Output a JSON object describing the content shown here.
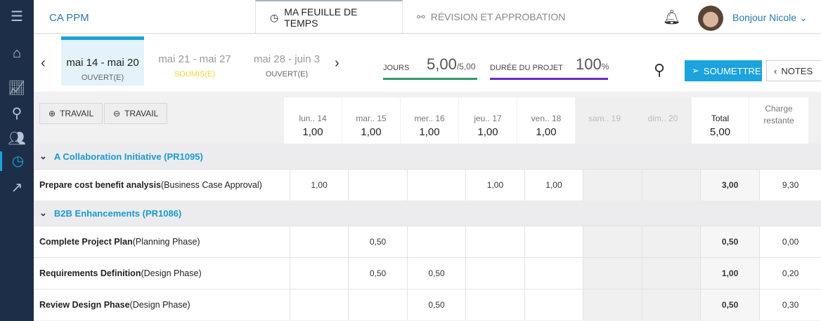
{
  "app": {
    "title": "CA PPM",
    "greeting": "Bonjour Nicole"
  },
  "tabs": [
    {
      "label": "MA FEUILLE DE TEMPS",
      "active": true
    },
    {
      "label": "RÉVISION ET APPROBATION",
      "active": false
    }
  ],
  "weeks": [
    {
      "range": "mai 14 - mai 20",
      "status": "OUVERT(E)",
      "selected": true,
      "color": "#666666"
    },
    {
      "range": "mai 21 - mai 27",
      "status": "SOUMIS(E)",
      "color": "#f2d43a"
    },
    {
      "range": "mai 28 - juin 3",
      "status": "OUVERT(E)",
      "color": "#666666"
    }
  ],
  "metrics": {
    "days_label": "JOURS",
    "days_value": "5,00",
    "days_total": "/5,00",
    "days_progress": 1.0,
    "duration_label": "DURÉE DU PROJET",
    "duration_value": "100",
    "duration_unit": "%",
    "duration_progress": 1.0
  },
  "actions": {
    "submit": "SOUMETTRE",
    "notes": "NOTES",
    "add_work": "TRAVAIL",
    "remove_work": "TRAVAIL"
  },
  "colors": {
    "accent": "#1aa3dc",
    "sidebar": "#1d2f48",
    "days_bar": "#2e9a6a",
    "duration_bar": "#6a2bc4"
  },
  "columns": [
    {
      "day": "lun.. 14",
      "total": "1,00"
    },
    {
      "day": "mar.. 15",
      "total": "1,00"
    },
    {
      "day": "mer.. 16",
      "total": "1,00"
    },
    {
      "day": "jeu.. 17",
      "total": "1,00"
    },
    {
      "day": "ven.. 18",
      "total": "1,00"
    },
    {
      "day": "sam.. 19",
      "total": "",
      "weekend": true
    },
    {
      "day": "dim.. 20",
      "total": "",
      "weekend": true
    }
  ],
  "total_header": {
    "label": "Total",
    "value": "5,00"
  },
  "remaining_header": "Charge restante",
  "groups": [
    {
      "name": "A Collaboration Initiative (PR1095)",
      "tasks": [
        {
          "task": "Prepare cost benefit analysis",
          "phase": "(Business Case Approval)",
          "values": [
            "1,00",
            "",
            "",
            "1,00",
            "1,00",
            "",
            ""
          ],
          "total": "3,00",
          "remaining": "9,30"
        }
      ]
    },
    {
      "name": "B2B Enhancements (PR1086)",
      "tasks": [
        {
          "task": "Complete Project Plan",
          "phase": "(Planning Phase)",
          "values": [
            "",
            "0,50",
            "",
            "",
            "",
            "",
            ""
          ],
          "total": "0,50",
          "remaining": "0,00"
        },
        {
          "task": "Requirements Definition",
          "phase": "(Design Phase)",
          "values": [
            "",
            "0,50",
            "0,50",
            "",
            "",
            "",
            ""
          ],
          "total": "1,00",
          "remaining": "0,20"
        },
        {
          "task": "Review Design Phase",
          "phase": "(Design Phase)",
          "values": [
            "",
            "",
            "0,50",
            "",
            "",
            "",
            ""
          ],
          "total": "0,50",
          "remaining": "0,30"
        }
      ]
    }
  ]
}
